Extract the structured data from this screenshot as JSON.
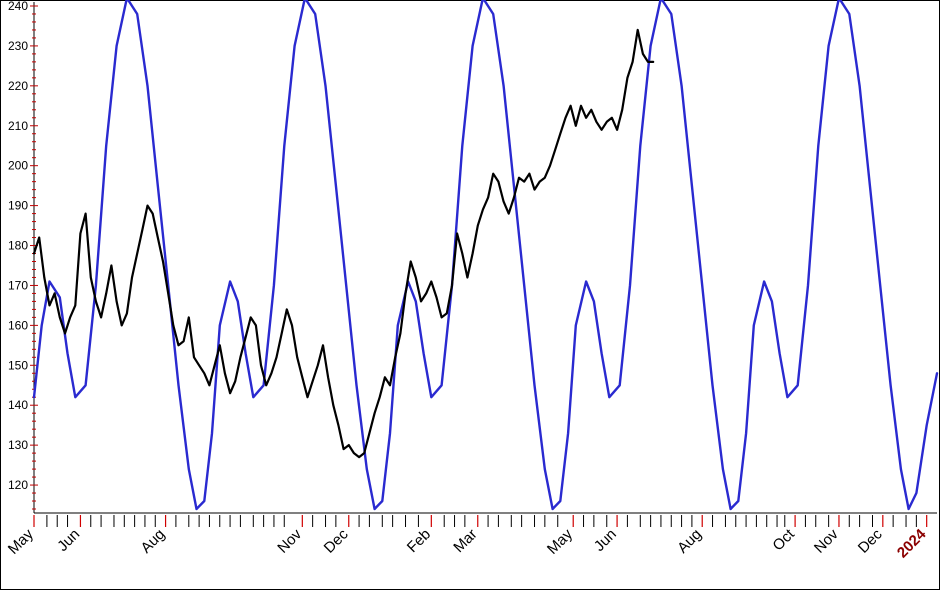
{
  "chart_data": {
    "type": "line",
    "title": "",
    "xlabel": "",
    "ylabel": "",
    "ylim": [
      113,
      241
    ],
    "yticks": [
      120,
      130,
      140,
      150,
      160,
      170,
      180,
      190,
      200,
      210,
      220,
      230,
      240
    ],
    "ytick_labels": [
      "120",
      "130",
      "140",
      "150",
      "160",
      "170",
      "180",
      "190",
      "200",
      "210",
      "220",
      "230",
      "240"
    ],
    "xlim": [
      0,
      35
    ],
    "grid": false,
    "legend": "none",
    "xticks": [
      {
        "x": 0.0,
        "label": "May",
        "year": false
      },
      {
        "x": 1.8,
        "label": "Jun",
        "year": false
      },
      {
        "x": 5.1,
        "label": "Aug",
        "year": false
      },
      {
        "x": 10.4,
        "label": "Nov",
        "year": false
      },
      {
        "x": 12.2,
        "label": "Dec",
        "year": false
      },
      {
        "x": 15.4,
        "label": "Feb",
        "year": false
      },
      {
        "x": 17.2,
        "label": "Mar",
        "year": false
      },
      {
        "x": 20.9,
        "label": "May",
        "year": false
      },
      {
        "x": 22.6,
        "label": "Jun",
        "year": false
      },
      {
        "x": 25.9,
        "label": "Aug",
        "year": false
      },
      {
        "x": 29.5,
        "label": "Oct",
        "year": false
      },
      {
        "x": 31.2,
        "label": "Nov",
        "year": false
      },
      {
        "x": 32.9,
        "label": "Dec",
        "year": false
      },
      {
        "x": 34.6,
        "label": "2024",
        "year": true
      }
    ],
    "minor_ticks": [
      0.5,
      0.9,
      1.3,
      2.2,
      2.6,
      3.1,
      3.5,
      3.9,
      4.3,
      4.7,
      5.5,
      6.0,
      6.4,
      6.8,
      7.2,
      7.6,
      8.0,
      8.5,
      8.9,
      9.3,
      9.7,
      10.8,
      11.3,
      11.7,
      12.6,
      13.0,
      13.5,
      13.9,
      14.4,
      14.9,
      15.9,
      16.3,
      16.7,
      17.6,
      18.0,
      18.5,
      18.9,
      19.4,
      19.8,
      20.3,
      21.3,
      21.7,
      22.2,
      23.0,
      23.5,
      23.9,
      24.3,
      24.7,
      25.1,
      25.5,
      26.3,
      26.8,
      27.2,
      27.6,
      28.0,
      28.4,
      28.8,
      29.1,
      29.9,
      30.3,
      30.8,
      31.6,
      32.0,
      32.5,
      33.3,
      33.8,
      34.2
    ],
    "series": [
      {
        "color": "#2a2ad0",
        "points": [
          [
            0.0,
            142
          ],
          [
            0.3,
            160
          ],
          [
            0.6,
            171
          ],
          [
            1.0,
            167
          ],
          [
            1.3,
            153
          ],
          [
            1.6,
            142
          ],
          [
            2.0,
            145
          ],
          [
            2.4,
            170
          ],
          [
            2.8,
            205
          ],
          [
            3.2,
            230
          ],
          [
            3.6,
            242
          ],
          [
            4.0,
            238
          ],
          [
            4.4,
            220
          ],
          [
            4.8,
            195
          ],
          [
            5.2,
            170
          ],
          [
            5.6,
            145
          ],
          [
            6.0,
            124
          ],
          [
            6.3,
            114
          ],
          [
            6.6,
            116
          ],
          [
            6.9,
            133
          ],
          [
            7.2,
            160
          ],
          [
            7.6,
            171
          ],
          [
            7.9,
            166
          ],
          [
            8.2,
            153
          ],
          [
            8.5,
            142
          ],
          [
            8.9,
            145
          ],
          [
            9.3,
            170
          ],
          [
            9.7,
            205
          ],
          [
            10.1,
            230
          ],
          [
            10.5,
            242
          ],
          [
            10.9,
            238
          ],
          [
            11.3,
            220
          ],
          [
            11.7,
            195
          ],
          [
            12.1,
            170
          ],
          [
            12.5,
            145
          ],
          [
            12.9,
            124
          ],
          [
            13.2,
            114
          ],
          [
            13.5,
            116
          ],
          [
            13.8,
            133
          ],
          [
            14.1,
            160
          ],
          [
            14.5,
            171
          ],
          [
            14.8,
            166
          ],
          [
            15.1,
            153
          ],
          [
            15.4,
            142
          ],
          [
            15.8,
            145
          ],
          [
            16.2,
            170
          ],
          [
            16.6,
            205
          ],
          [
            17.0,
            230
          ],
          [
            17.4,
            242
          ],
          [
            17.8,
            238
          ],
          [
            18.2,
            220
          ],
          [
            18.6,
            195
          ],
          [
            19.0,
            170
          ],
          [
            19.4,
            145
          ],
          [
            19.8,
            124
          ],
          [
            20.1,
            114
          ],
          [
            20.4,
            116
          ],
          [
            20.7,
            133
          ],
          [
            21.0,
            160
          ],
          [
            21.4,
            171
          ],
          [
            21.7,
            166
          ],
          [
            22.0,
            153
          ],
          [
            22.3,
            142
          ],
          [
            22.7,
            145
          ],
          [
            23.1,
            170
          ],
          [
            23.5,
            205
          ],
          [
            23.9,
            230
          ],
          [
            24.3,
            242
          ],
          [
            24.7,
            238
          ],
          [
            25.1,
            220
          ],
          [
            25.5,
            195
          ],
          [
            25.9,
            170
          ],
          [
            26.3,
            145
          ],
          [
            26.7,
            124
          ],
          [
            27.0,
            114
          ],
          [
            27.3,
            116
          ],
          [
            27.6,
            133
          ],
          [
            27.9,
            160
          ],
          [
            28.3,
            171
          ],
          [
            28.6,
            166
          ],
          [
            28.9,
            153
          ],
          [
            29.2,
            142
          ],
          [
            29.6,
            145
          ],
          [
            30.0,
            170
          ],
          [
            30.4,
            205
          ],
          [
            30.8,
            230
          ],
          [
            31.2,
            242
          ],
          [
            31.6,
            238
          ],
          [
            32.0,
            220
          ],
          [
            32.4,
            195
          ],
          [
            32.8,
            170
          ],
          [
            33.2,
            145
          ],
          [
            33.6,
            124
          ],
          [
            33.9,
            114
          ],
          [
            34.2,
            118
          ],
          [
            34.6,
            135
          ],
          [
            35.0,
            148
          ]
        ]
      },
      {
        "color": "#000000",
        "points": [
          [
            0.0,
            178
          ],
          [
            0.2,
            182
          ],
          [
            0.4,
            172
          ],
          [
            0.6,
            165
          ],
          [
            0.8,
            168
          ],
          [
            1.0,
            162
          ],
          [
            1.2,
            158
          ],
          [
            1.4,
            162
          ],
          [
            1.6,
            165
          ],
          [
            1.8,
            183
          ],
          [
            2.0,
            188
          ],
          [
            2.2,
            172
          ],
          [
            2.4,
            166
          ],
          [
            2.6,
            162
          ],
          [
            2.8,
            168
          ],
          [
            3.0,
            175
          ],
          [
            3.2,
            166
          ],
          [
            3.4,
            160
          ],
          [
            3.6,
            163
          ],
          [
            3.8,
            172
          ],
          [
            4.0,
            178
          ],
          [
            4.2,
            184
          ],
          [
            4.4,
            190
          ],
          [
            4.6,
            188
          ],
          [
            4.8,
            182
          ],
          [
            5.0,
            176
          ],
          [
            5.2,
            168
          ],
          [
            5.4,
            160
          ],
          [
            5.6,
            155
          ],
          [
            5.8,
            156
          ],
          [
            6.0,
            162
          ],
          [
            6.2,
            152
          ],
          [
            6.4,
            150
          ],
          [
            6.6,
            148
          ],
          [
            6.8,
            145
          ],
          [
            7.0,
            150
          ],
          [
            7.2,
            155
          ],
          [
            7.4,
            148
          ],
          [
            7.6,
            143
          ],
          [
            7.8,
            146
          ],
          [
            8.0,
            152
          ],
          [
            8.2,
            157
          ],
          [
            8.4,
            162
          ],
          [
            8.6,
            160
          ],
          [
            8.8,
            150
          ],
          [
            9.0,
            145
          ],
          [
            9.2,
            148
          ],
          [
            9.4,
            152
          ],
          [
            9.6,
            158
          ],
          [
            9.8,
            164
          ],
          [
            10.0,
            160
          ],
          [
            10.2,
            152
          ],
          [
            10.4,
            147
          ],
          [
            10.6,
            142
          ],
          [
            10.8,
            146
          ],
          [
            11.0,
            150
          ],
          [
            11.2,
            155
          ],
          [
            11.4,
            147
          ],
          [
            11.6,
            140
          ],
          [
            11.8,
            135
          ],
          [
            12.0,
            129
          ],
          [
            12.2,
            130
          ],
          [
            12.4,
            128
          ],
          [
            12.6,
            127
          ],
          [
            12.8,
            128
          ],
          [
            13.0,
            133
          ],
          [
            13.2,
            138
          ],
          [
            13.4,
            142
          ],
          [
            13.6,
            147
          ],
          [
            13.8,
            145
          ],
          [
            14.0,
            152
          ],
          [
            14.2,
            158
          ],
          [
            14.4,
            168
          ],
          [
            14.6,
            176
          ],
          [
            14.8,
            172
          ],
          [
            15.0,
            166
          ],
          [
            15.2,
            168
          ],
          [
            15.4,
            171
          ],
          [
            15.6,
            167
          ],
          [
            15.8,
            162
          ],
          [
            16.0,
            163
          ],
          [
            16.2,
            170
          ],
          [
            16.4,
            183
          ],
          [
            16.6,
            178
          ],
          [
            16.8,
            172
          ],
          [
            17.0,
            178
          ],
          [
            17.2,
            185
          ],
          [
            17.4,
            189
          ],
          [
            17.6,
            192
          ],
          [
            17.8,
            198
          ],
          [
            18.0,
            196
          ],
          [
            18.2,
            191
          ],
          [
            18.4,
            188
          ],
          [
            18.6,
            192
          ],
          [
            18.8,
            197
          ],
          [
            19.0,
            196
          ],
          [
            19.2,
            198
          ],
          [
            19.4,
            194
          ],
          [
            19.6,
            196
          ],
          [
            19.8,
            197
          ],
          [
            20.0,
            200
          ],
          [
            20.2,
            204
          ],
          [
            20.4,
            208
          ],
          [
            20.6,
            212
          ],
          [
            20.8,
            215
          ],
          [
            21.0,
            210
          ],
          [
            21.2,
            215
          ],
          [
            21.4,
            212
          ],
          [
            21.6,
            214
          ],
          [
            21.8,
            211
          ],
          [
            22.0,
            209
          ],
          [
            22.2,
            211
          ],
          [
            22.4,
            212
          ],
          [
            22.6,
            209
          ],
          [
            22.8,
            214
          ],
          [
            23.0,
            222
          ],
          [
            23.2,
            226
          ],
          [
            23.4,
            234
          ],
          [
            23.6,
            228
          ],
          [
            23.8,
            226
          ],
          [
            24.0,
            226
          ]
        ]
      }
    ]
  }
}
